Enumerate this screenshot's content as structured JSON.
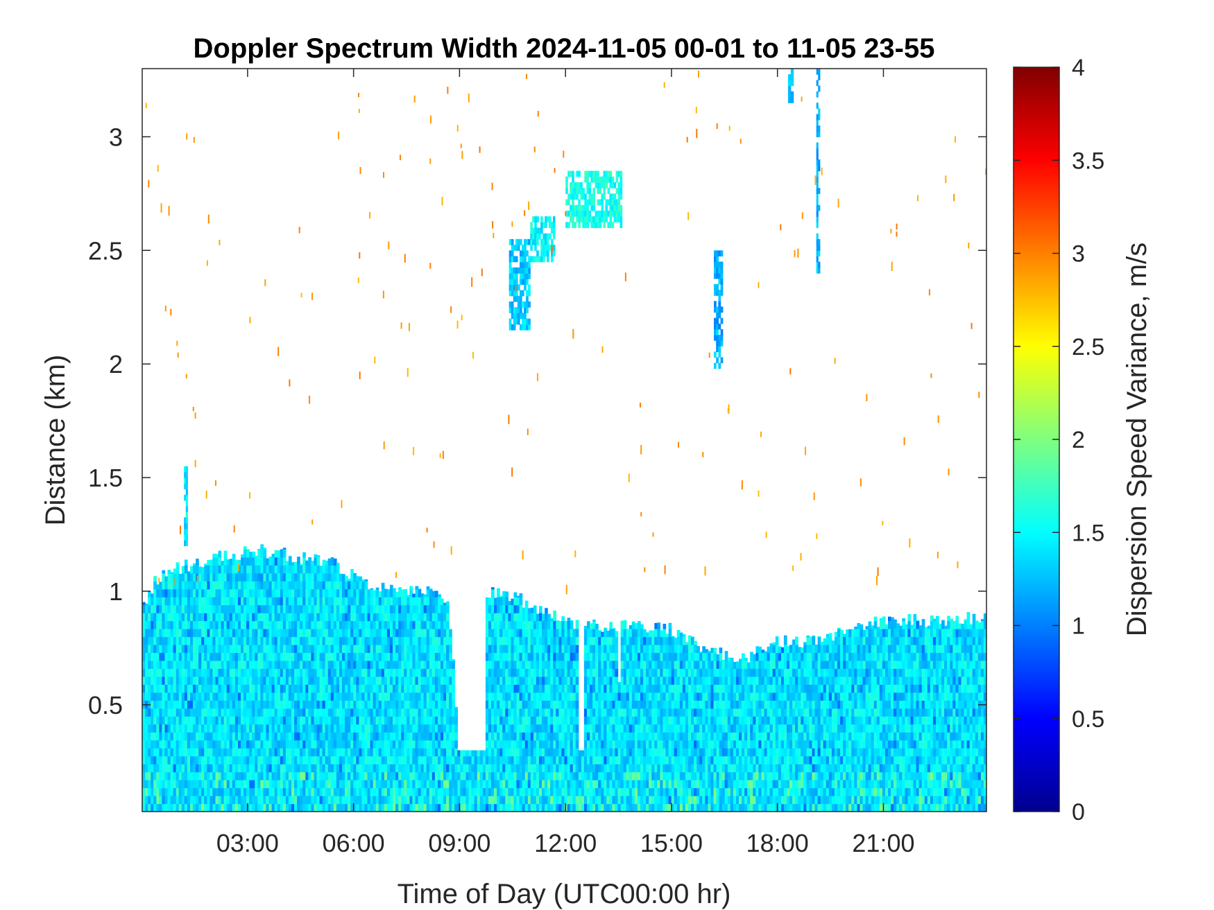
{
  "chart_data": {
    "type": "heatmap",
    "title": "Doppler Spectrum Width 2024-11-05 00-01 to 11-05 23-55",
    "xlabel": "Time of Day (UTC00:00 hr)",
    "ylabel": "Distance (km)",
    "colorbar_label": "Dispersion Speed Variance, m/s",
    "colormap": "jet",
    "x_unit": "hours",
    "xlim": [
      0.017,
      23.917
    ],
    "ylim": [
      0.03,
      3.3
    ],
    "clim": [
      0,
      4
    ],
    "x_ticks": [
      3,
      6,
      9,
      12,
      15,
      18,
      21
    ],
    "x_tick_labels": [
      "03:00",
      "06:00",
      "09:00",
      "12:00",
      "15:00",
      "18:00",
      "21:00"
    ],
    "y_ticks": [
      0.5,
      1,
      1.5,
      2,
      2.5,
      3
    ],
    "y_tick_labels": [
      "0.5",
      "1",
      "1.5",
      "2",
      "2.5",
      "3"
    ],
    "colorbar_ticks": [
      0,
      0.5,
      1,
      1.5,
      2,
      2.5,
      3,
      3.5,
      4
    ],
    "colorbar_tick_labels": [
      "0",
      "0.5",
      "1",
      "1.5",
      "2",
      "2.5",
      "3",
      "3.5",
      "4"
    ],
    "grid": false,
    "boundary_layer_top_km": {
      "time_hr": [
        0.0,
        0.4,
        1.0,
        1.6,
        2.5,
        3.3,
        4.5,
        5.5,
        6.2,
        7.0,
        8.0,
        8.7,
        9.0,
        9.8,
        10.5,
        11.5,
        12.3,
        13.0,
        14.0,
        15.0,
        16.0,
        17.0,
        18.0,
        19.0,
        20.0,
        21.0,
        22.0,
        23.9
      ],
      "top_km": [
        0.92,
        1.05,
        1.1,
        1.13,
        1.16,
        1.18,
        1.15,
        1.12,
        1.05,
        1.0,
        1.0,
        0.95,
        0.3,
        1.0,
        0.98,
        0.9,
        0.85,
        0.85,
        0.85,
        0.83,
        0.75,
        0.7,
        0.78,
        0.78,
        0.82,
        0.87,
        0.87,
        0.88
      ]
    },
    "gaps": [
      {
        "time_hr": [
          8.9,
          9.75
        ],
        "top_km": 0.3
      },
      {
        "time_hr": [
          12.35,
          12.5
        ],
        "top_km": 0.3
      },
      {
        "time_hr": [
          13.45,
          13.6
        ],
        "top_km": 0.6
      }
    ],
    "boundary_layer_typical_value_m_s": 1.4,
    "cloud_features": [
      {
        "time_hr": [
          10.4,
          11.0
        ],
        "height_km": [
          2.15,
          2.55
        ],
        "value_m_s": 1.3
      },
      {
        "time_hr": [
          11.0,
          11.7
        ],
        "height_km": [
          2.45,
          2.65
        ],
        "value_m_s": 1.5
      },
      {
        "time_hr": [
          12.0,
          13.6
        ],
        "height_km": [
          2.6,
          2.85
        ],
        "value_m_s": 1.6
      },
      {
        "time_hr": [
          16.2,
          16.45
        ],
        "height_km": [
          1.98,
          2.5
        ],
        "value_m_s": 1.2
      },
      {
        "time_hr": [
          19.1,
          19.2
        ],
        "height_km": [
          2.4,
          3.3
        ],
        "value_m_s": 1.2
      },
      {
        "time_hr": [
          18.3,
          18.45
        ],
        "height_km": [
          3.15,
          3.3
        ],
        "value_m_s": 1.3
      },
      {
        "time_hr": [
          1.2,
          1.3
        ],
        "height_km": [
          1.2,
          1.55
        ],
        "value_m_s": 1.4
      }
    ],
    "sparse_noise_value_m_s": 2.9
  }
}
